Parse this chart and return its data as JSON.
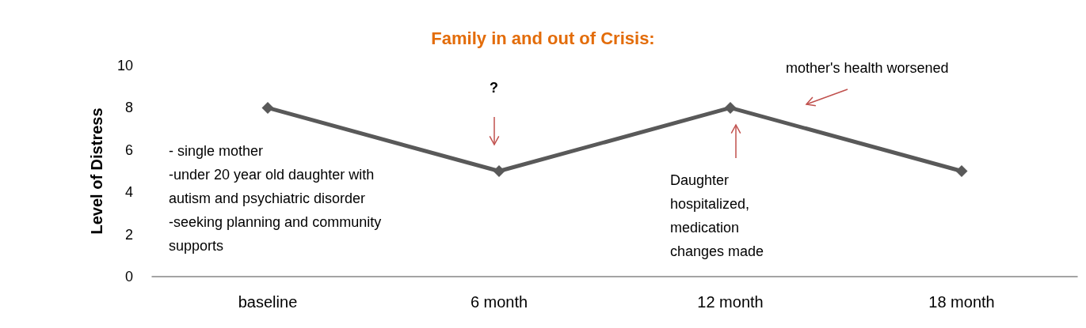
{
  "chart_data": {
    "type": "line",
    "title": "Family in and out of Crisis:",
    "ylabel": "Level of Distress",
    "categories": [
      "baseline",
      "6 month",
      "12 month",
      "18 month"
    ],
    "series": [
      {
        "color": "#595959",
        "values": [
          8,
          5,
          8,
          5
        ]
      }
    ],
    "ylim": [
      0,
      10
    ],
    "yticks": [
      0,
      2,
      4,
      6,
      8,
      10
    ],
    "grid": false,
    "marker": "diamond",
    "line_style": "solid",
    "annotations": [
      "?",
      "- single mother\n-under 20 year old daughter with\nautism and psychiatric disorder\n-seeking planning and community\nsupports",
      "Daughter\nhospitalized,\nmedication\nchanges made",
      "mother's health worsened"
    ]
  }
}
